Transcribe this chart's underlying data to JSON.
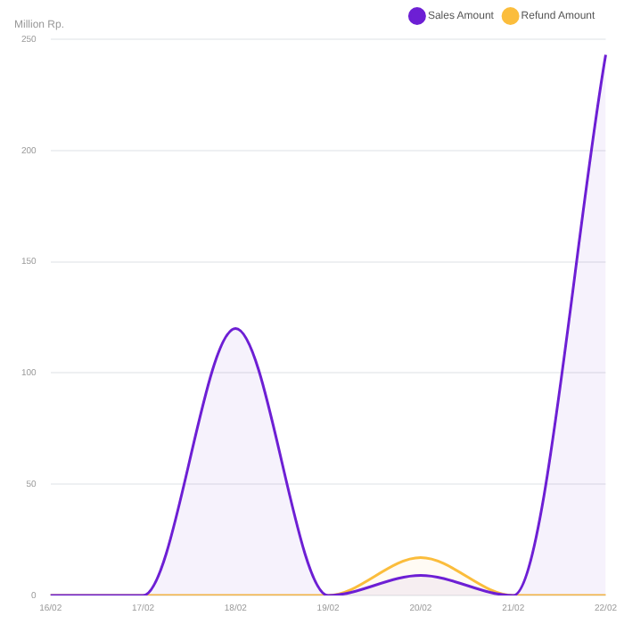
{
  "chart_data": {
    "type": "area",
    "ylabel": "Million Rp.",
    "categories": [
      "16/02",
      "17/02",
      "18/02",
      "19/02",
      "20/02",
      "21/02",
      "22/02"
    ],
    "series": [
      {
        "name": "Sales Amount",
        "color": "#6d1fd4",
        "values": [
          0,
          0,
          120,
          0,
          9,
          0,
          243
        ]
      },
      {
        "name": "Refund Amount",
        "color": "#fbbd3c",
        "values": [
          0,
          0,
          0,
          0,
          17,
          0,
          0
        ]
      }
    ],
    "ylim": [
      0,
      250
    ],
    "yticks": [
      0,
      50,
      100,
      150,
      200,
      250
    ],
    "grid": "y",
    "legend": "top right",
    "marker": "none"
  }
}
